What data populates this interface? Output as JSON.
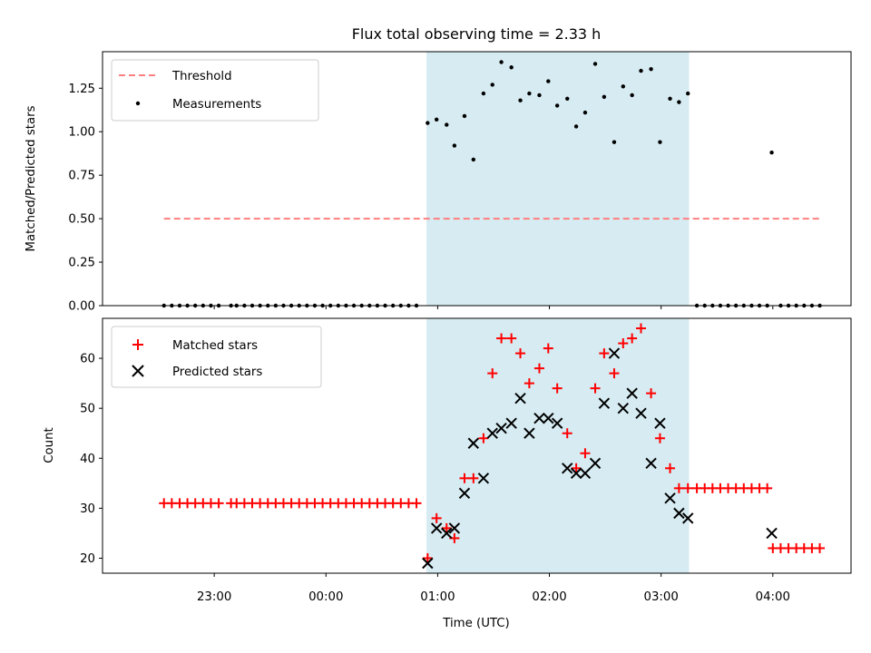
{
  "chart_data": {
    "type": "scatter",
    "title": "Flux total observing time = 2.33 h",
    "shared_x": {
      "label": "Time (UTC)",
      "ticks": [
        {
          "h": 23,
          "label": "23:00"
        },
        {
          "h": 24,
          "label": "00:00"
        },
        {
          "h": 25,
          "label": "01:00"
        },
        {
          "h": 26,
          "label": "02:00"
        },
        {
          "h": 27,
          "label": "03:00"
        },
        {
          "h": 28,
          "label": "04:00"
        }
      ],
      "range": [
        22.0,
        28.7
      ],
      "highlight_span": [
        24.9,
        27.25
      ],
      "highlight_color": "#add8e6"
    },
    "panels": [
      {
        "id": "ratio",
        "ylabel": "Matched/Predicted stars",
        "ylim": [
          0,
          1.46
        ],
        "yticks": [
          "0.00",
          "0.25",
          "0.50",
          "0.75",
          "1.00",
          "1.25"
        ],
        "threshold": {
          "label": "Threshold",
          "value": 0.5,
          "x_range": [
            22.55,
            28.42
          ],
          "color": "#ff7f7f"
        },
        "series": [
          {
            "name": "Measurements",
            "marker": "dot",
            "color": "#000000",
            "points": [
              [
                22.55,
                0
              ],
              [
                22.62,
                0
              ],
              [
                22.69,
                0
              ],
              [
                22.76,
                0
              ],
              [
                22.83,
                0
              ],
              [
                22.9,
                0
              ],
              [
                22.97,
                0
              ],
              [
                23.04,
                0
              ],
              [
                23.15,
                0
              ],
              [
                23.2,
                0
              ],
              [
                23.27,
                0
              ],
              [
                23.34,
                0
              ],
              [
                23.41,
                0
              ],
              [
                23.48,
                0
              ],
              [
                23.55,
                0
              ],
              [
                23.62,
                0
              ],
              [
                23.69,
                0
              ],
              [
                23.76,
                0
              ],
              [
                23.83,
                0
              ],
              [
                23.9,
                0
              ],
              [
                23.97,
                0
              ],
              [
                24.04,
                0
              ],
              [
                24.11,
                0
              ],
              [
                24.18,
                0
              ],
              [
                24.25,
                0
              ],
              [
                24.32,
                0
              ],
              [
                24.39,
                0
              ],
              [
                24.46,
                0
              ],
              [
                24.53,
                0
              ],
              [
                24.6,
                0
              ],
              [
                24.67,
                0
              ],
              [
                24.74,
                0
              ],
              [
                24.81,
                0
              ],
              [
                24.91,
                1.05
              ],
              [
                24.99,
                1.07
              ],
              [
                25.08,
                1.04
              ],
              [
                25.15,
                0.92
              ],
              [
                25.24,
                1.09
              ],
              [
                25.32,
                0.84
              ],
              [
                25.41,
                1.22
              ],
              [
                25.49,
                1.27
              ],
              [
                25.57,
                1.4
              ],
              [
                25.66,
                1.37
              ],
              [
                25.74,
                1.18
              ],
              [
                25.82,
                1.22
              ],
              [
                25.91,
                1.21
              ],
              [
                25.99,
                1.29
              ],
              [
                26.07,
                1.15
              ],
              [
                26.16,
                1.19
              ],
              [
                26.24,
                1.03
              ],
              [
                26.32,
                1.11
              ],
              [
                26.41,
                1.39
              ],
              [
                26.49,
                1.2
              ],
              [
                26.58,
                0.94
              ],
              [
                26.66,
                1.26
              ],
              [
                26.74,
                1.21
              ],
              [
                26.82,
                1.35
              ],
              [
                26.91,
                1.36
              ],
              [
                26.99,
                0.94
              ],
              [
                27.08,
                1.19
              ],
              [
                27.16,
                1.17
              ],
              [
                27.24,
                1.22
              ],
              [
                27.32,
                0
              ],
              [
                27.39,
                0
              ],
              [
                27.46,
                0
              ],
              [
                27.53,
                0
              ],
              [
                27.6,
                0
              ],
              [
                27.67,
                0
              ],
              [
                27.74,
                0
              ],
              [
                27.81,
                0
              ],
              [
                27.88,
                0
              ],
              [
                27.95,
                0
              ],
              [
                27.99,
                0.88
              ],
              [
                28.07,
                0
              ],
              [
                28.14,
                0
              ],
              [
                28.21,
                0
              ],
              [
                28.28,
                0
              ],
              [
                28.35,
                0
              ],
              [
                28.42,
                0
              ]
            ]
          }
        ]
      },
      {
        "id": "count",
        "ylabel": "Count",
        "ylim": [
          17,
          68
        ],
        "yticks": [
          20,
          30,
          40,
          50,
          60
        ],
        "series": [
          {
            "name": "Matched stars",
            "marker": "plus",
            "color": "#ff0000",
            "points": [
              [
                22.55,
                31
              ],
              [
                22.62,
                31
              ],
              [
                22.69,
                31
              ],
              [
                22.76,
                31
              ],
              [
                22.83,
                31
              ],
              [
                22.9,
                31
              ],
              [
                22.97,
                31
              ],
              [
                23.04,
                31
              ],
              [
                23.15,
                31
              ],
              [
                23.2,
                31
              ],
              [
                23.27,
                31
              ],
              [
                23.34,
                31
              ],
              [
                23.41,
                31
              ],
              [
                23.48,
                31
              ],
              [
                23.55,
                31
              ],
              [
                23.62,
                31
              ],
              [
                23.69,
                31
              ],
              [
                23.76,
                31
              ],
              [
                23.83,
                31
              ],
              [
                23.9,
                31
              ],
              [
                23.97,
                31
              ],
              [
                24.04,
                31
              ],
              [
                24.11,
                31
              ],
              [
                24.18,
                31
              ],
              [
                24.25,
                31
              ],
              [
                24.32,
                31
              ],
              [
                24.39,
                31
              ],
              [
                24.46,
                31
              ],
              [
                24.53,
                31
              ],
              [
                24.6,
                31
              ],
              [
                24.67,
                31
              ],
              [
                24.74,
                31
              ],
              [
                24.81,
                31
              ],
              [
                24.91,
                20
              ],
              [
                24.99,
                28
              ],
              [
                25.08,
                26
              ],
              [
                25.15,
                24
              ],
              [
                25.24,
                36
              ],
              [
                25.32,
                36
              ],
              [
                25.41,
                44
              ],
              [
                25.49,
                57
              ],
              [
                25.57,
                64
              ],
              [
                25.66,
                64
              ],
              [
                25.74,
                61
              ],
              [
                25.82,
                55
              ],
              [
                25.91,
                58
              ],
              [
                25.99,
                62
              ],
              [
                26.07,
                54
              ],
              [
                26.16,
                45
              ],
              [
                26.24,
                38
              ],
              [
                26.32,
                41
              ],
              [
                26.41,
                54
              ],
              [
                26.49,
                61
              ],
              [
                26.58,
                57
              ],
              [
                26.66,
                63
              ],
              [
                26.74,
                64
              ],
              [
                26.82,
                66
              ],
              [
                26.91,
                53
              ],
              [
                26.99,
                44
              ],
              [
                27.08,
                38
              ],
              [
                27.16,
                34
              ],
              [
                27.24,
                34
              ],
              [
                27.32,
                34
              ],
              [
                27.39,
                34
              ],
              [
                27.46,
                34
              ],
              [
                27.53,
                34
              ],
              [
                27.6,
                34
              ],
              [
                27.67,
                34
              ],
              [
                27.74,
                34
              ],
              [
                27.81,
                34
              ],
              [
                27.88,
                34
              ],
              [
                27.95,
                34
              ],
              [
                28.0,
                22
              ],
              [
                28.07,
                22
              ],
              [
                28.14,
                22
              ],
              [
                28.21,
                22
              ],
              [
                28.28,
                22
              ],
              [
                28.35,
                22
              ],
              [
                28.42,
                22
              ]
            ]
          },
          {
            "name": "Predicted stars",
            "marker": "x",
            "color": "#000000",
            "points": [
              [
                24.91,
                19
              ],
              [
                24.99,
                26
              ],
              [
                25.08,
                25
              ],
              [
                25.15,
                26
              ],
              [
                25.24,
                33
              ],
              [
                25.32,
                43
              ],
              [
                25.41,
                36
              ],
              [
                25.49,
                45
              ],
              [
                25.57,
                46
              ],
              [
                25.66,
                47
              ],
              [
                25.74,
                52
              ],
              [
                25.82,
                45
              ],
              [
                25.91,
                48
              ],
              [
                25.99,
                48
              ],
              [
                26.07,
                47
              ],
              [
                26.16,
                38
              ],
              [
                26.24,
                37
              ],
              [
                26.32,
                37
              ],
              [
                26.41,
                39
              ],
              [
                26.49,
                51
              ],
              [
                26.58,
                61
              ],
              [
                26.66,
                50
              ],
              [
                26.74,
                53
              ],
              [
                26.82,
                49
              ],
              [
                26.91,
                39
              ],
              [
                26.99,
                47
              ],
              [
                27.08,
                32
              ],
              [
                27.16,
                29
              ],
              [
                27.24,
                28
              ],
              [
                27.99,
                25
              ]
            ]
          }
        ]
      }
    ]
  }
}
